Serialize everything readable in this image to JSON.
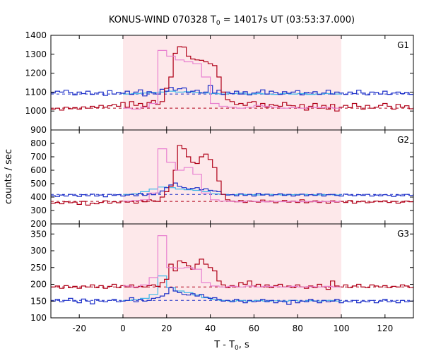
{
  "chart_data": {
    "type": "line",
    "title": {
      "prefix": "KONUS-WIND 070328 T",
      "sub": "0",
      "suffix": " = 14017s UT (03:53:37.000)"
    },
    "xlabel": {
      "prefix": "T - T",
      "sub": "0",
      "suffix": ", s"
    },
    "ylabel": "counts / sec",
    "xlim": [
      -33,
      133
    ],
    "xticks": [
      -20,
      0,
      20,
      40,
      60,
      80,
      100,
      120
    ],
    "highlight_interval": [
      0,
      100
    ],
    "colors": {
      "red": "#b00018",
      "pink": "#e880d0",
      "blue": "#1c2fc8",
      "cyan": "#40b8e8",
      "highlight": "#fde8ea"
    },
    "panels": [
      {
        "name": "G1",
        "ylim": [
          900,
          1400
        ],
        "yticks": [
          900,
          1000,
          1100,
          1200,
          1300,
          1400
        ],
        "red_bg": 1015,
        "blue_bg": 1090,
        "red_series": {
          "name": "G1 high-res (red)",
          "x0": -33,
          "dx": 2,
          "values": [
            1010,
            1015,
            1005,
            1020,
            1012,
            1018,
            1010,
            1022,
            1015,
            1025,
            1018,
            1030,
            1020,
            1028,
            1035,
            1025,
            1045,
            1020,
            1050,
            1030,
            1040,
            1025,
            1045,
            1055,
            1035,
            1050,
            1120,
            1180,
            1305,
            1340,
            1338,
            1290,
            1275,
            1270,
            1268,
            1260,
            1250,
            1240,
            1180,
            1100,
            1060,
            1050,
            1035,
            1040,
            1030,
            1045,
            1050,
            1025,
            1040,
            1020,
            1035,
            1030,
            1025,
            1045,
            1030,
            1028,
            1018,
            1035,
            1005,
            1025,
            1040,
            1015,
            1030,
            1010,
            1035,
            1000,
            1020,
            1030,
            1018,
            1040,
            1025,
            1010,
            1030,
            1015,
            1020,
            1030,
            1040,
            1025,
            1010,
            1035,
            1020,
            1028,
            1012,
            995,
            1005
          ]
        },
        "pink_series": {
          "name": "G1 light curve (pink)",
          "x0": 0,
          "dx": 4,
          "values": [
            1015,
            1010,
            1020,
            1040,
            1320,
            1290,
            1270,
            1260,
            1250,
            1180,
            1040,
            1025,
            1020,
            1015,
            1020,
            1030,
            1025,
            1020,
            1015,
            1018,
            1015,
            1020,
            1018,
            1020,
            1015
          ]
        },
        "blue_series": {
          "name": "G1 high-res (blue)",
          "x0": -33,
          "dx": 2,
          "values": [
            1095,
            1105,
            1100,
            1110,
            1098,
            1085,
            1100,
            1092,
            1105,
            1088,
            1095,
            1100,
            1082,
            1108,
            1090,
            1098,
            1094,
            1105,
            1088,
            1100,
            1112,
            1080,
            1102,
            1095,
            1090,
            1115,
            1105,
            1125,
            1110,
            1118,
            1122,
            1098,
            1105,
            1110,
            1095,
            1100,
            1135,
            1095,
            1110,
            1088,
            1100,
            1092,
            1105,
            1090,
            1102,
            1085,
            1095,
            1100,
            1112,
            1090,
            1105,
            1098,
            1088,
            1102,
            1094,
            1100,
            1108,
            1085,
            1098,
            1095,
            1102,
            1088,
            1095,
            1110,
            1090,
            1100,
            1095,
            1088,
            1100,
            1092,
            1110,
            1095,
            1085,
            1100,
            1098,
            1090,
            1105,
            1088,
            1095,
            1100,
            1092,
            1098,
            1088,
            1095,
            1090
          ]
        },
        "cyan_series": {
          "name": "G1 light curve (cyan)",
          "x0": 0,
          "dx": 4,
          "values": [
            1090,
            1092,
            1095,
            1098,
            1100,
            1105,
            1100,
            1102,
            1098,
            1095,
            1092,
            1090,
            1092,
            1095,
            1090,
            1092,
            1090,
            1088,
            1092,
            1090,
            1092,
            1088,
            1090,
            1092,
            1090
          ]
        }
      },
      {
        "name": "G2",
        "ylim": [
          200,
          900
        ],
        "yticks": [
          200,
          300,
          400,
          500,
          600,
          700,
          800
        ],
        "red_bg": 368,
        "blue_bg": 420,
        "red_series": {
          "name": "G2 high-res (red)",
          "x0": -33,
          "dx": 2,
          "values": [
            355,
            360,
            350,
            365,
            358,
            362,
            345,
            368,
            340,
            355,
            350,
            360,
            372,
            355,
            365,
            358,
            370,
            362,
            368,
            355,
            375,
            365,
            380,
            372,
            368,
            400,
            440,
            480,
            600,
            785,
            760,
            700,
            660,
            650,
            700,
            720,
            680,
            620,
            520,
            420,
            380,
            370,
            365,
            375,
            360,
            372,
            368,
            362,
            378,
            365,
            370,
            358,
            368,
            375,
            362,
            370,
            360,
            380,
            358,
            365,
            372,
            360,
            368,
            355,
            372,
            362,
            368,
            360,
            375,
            355,
            365,
            370,
            358,
            362,
            370,
            365,
            372,
            360,
            368,
            355,
            362,
            370,
            365,
            358,
            362
          ]
        },
        "pink_series": {
          "name": "G2 light curve (pink)",
          "x0": 0,
          "dx": 4,
          "values": [
            370,
            375,
            380,
            430,
            760,
            660,
            600,
            620,
            570,
            430,
            380,
            370,
            368,
            365,
            370,
            368,
            365,
            368,
            366,
            368,
            366,
            368,
            365,
            368,
            366
          ]
        },
        "blue_series": {
          "name": "G2 high-res (blue)",
          "x0": -33,
          "dx": 2,
          "values": [
            410,
            405,
            415,
            408,
            420,
            412,
            405,
            418,
            410,
            422,
            408,
            415,
            402,
            420,
            412,
            418,
            408,
            415,
            420,
            410,
            428,
            412,
            425,
            418,
            430,
            445,
            470,
            490,
            505,
            480,
            470,
            460,
            465,
            470,
            455,
            462,
            450,
            445,
            440,
            420,
            415,
            418,
            410,
            425,
            412,
            420,
            408,
            428,
            415,
            422,
            410,
            418,
            425,
            412,
            420,
            408,
            415,
            422,
            410,
            418,
            412,
            425,
            408,
            418,
            420,
            412,
            408,
            422,
            415,
            410,
            418,
            412,
            420,
            408,
            415,
            410,
            418,
            412,
            405,
            415,
            410,
            420,
            412,
            405,
            410
          ]
        },
        "cyan_series": {
          "name": "G2 light curve (cyan)",
          "x0": 0,
          "dx": 4,
          "values": [
            420,
            425,
            440,
            460,
            475,
            470,
            460,
            455,
            450,
            440,
            425,
            420,
            418,
            420,
            418,
            416,
            420,
            418,
            416,
            418,
            420,
            418,
            416,
            418,
            416
          ]
        }
      },
      {
        "name": "G3",
        "ylim": [
          100,
          380
        ],
        "yticks": [
          100,
          150,
          200,
          250,
          300,
          350
        ],
        "red_bg": 192,
        "blue_bg": 152,
        "red_series": {
          "name": "G3 high-res (red)",
          "x0": -33,
          "dx": 2,
          "values": [
            192,
            195,
            188,
            196,
            190,
            194,
            188,
            195,
            192,
            198,
            190,
            196,
            188,
            194,
            200,
            190,
            196,
            192,
            198,
            190,
            194,
            192,
            196,
            198,
            194,
            205,
            215,
            260,
            240,
            270,
            265,
            255,
            245,
            260,
            275,
            260,
            250,
            240,
            210,
            198,
            190,
            196,
            192,
            205,
            200,
            210,
            195,
            200,
            192,
            198,
            190,
            196,
            200,
            192,
            195,
            190,
            198,
            192,
            188,
            195,
            190,
            200,
            192,
            185,
            210,
            195,
            192,
            198,
            190,
            195,
            200,
            192,
            190,
            198,
            195,
            192,
            196,
            190,
            194,
            192,
            198,
            195,
            190,
            194,
            192
          ]
        },
        "pink_series": {
          "name": "G3 light curve (pink)",
          "x0": 0,
          "dx": 4,
          "values": [
            195,
            192,
            198,
            220,
            345,
            250,
            248,
            250,
            245,
            205,
            195,
            192,
            194,
            192,
            195,
            192,
            194,
            193,
            192,
            194,
            192,
            193,
            192,
            194,
            192
          ]
        },
        "blue_series": {
          "name": "G3 high-res (blue)",
          "x0": -33,
          "dx": 2,
          "values": [
            150,
            155,
            148,
            152,
            158,
            150,
            145,
            156,
            150,
            142,
            155,
            150,
            148,
            152,
            155,
            148,
            150,
            152,
            160,
            148,
            155,
            150,
            152,
            158,
            160,
            165,
            172,
            190,
            180,
            175,
            170,
            168,
            172,
            165,
            170,
            162,
            158,
            160,
            155,
            150,
            152,
            148,
            155,
            150,
            145,
            152,
            148,
            150,
            155,
            148,
            152,
            145,
            150,
            148,
            140,
            152,
            145,
            150,
            148,
            155,
            150,
            145,
            152,
            148,
            150,
            155,
            145,
            150,
            148,
            152,
            145,
            150,
            148,
            152,
            145,
            150,
            155,
            148,
            150,
            145,
            152,
            148,
            150,
            155,
            150
          ]
        },
        "cyan_series": {
          "name": "G3 light curve (cyan)",
          "x0": 0,
          "dx": 4,
          "values": [
            152,
            154,
            158,
            170,
            225,
            190,
            180,
            175,
            168,
            160,
            155,
            152,
            150,
            152,
            150,
            152,
            150,
            151,
            150,
            152,
            150,
            151,
            150,
            152,
            150
          ]
        }
      }
    ]
  }
}
